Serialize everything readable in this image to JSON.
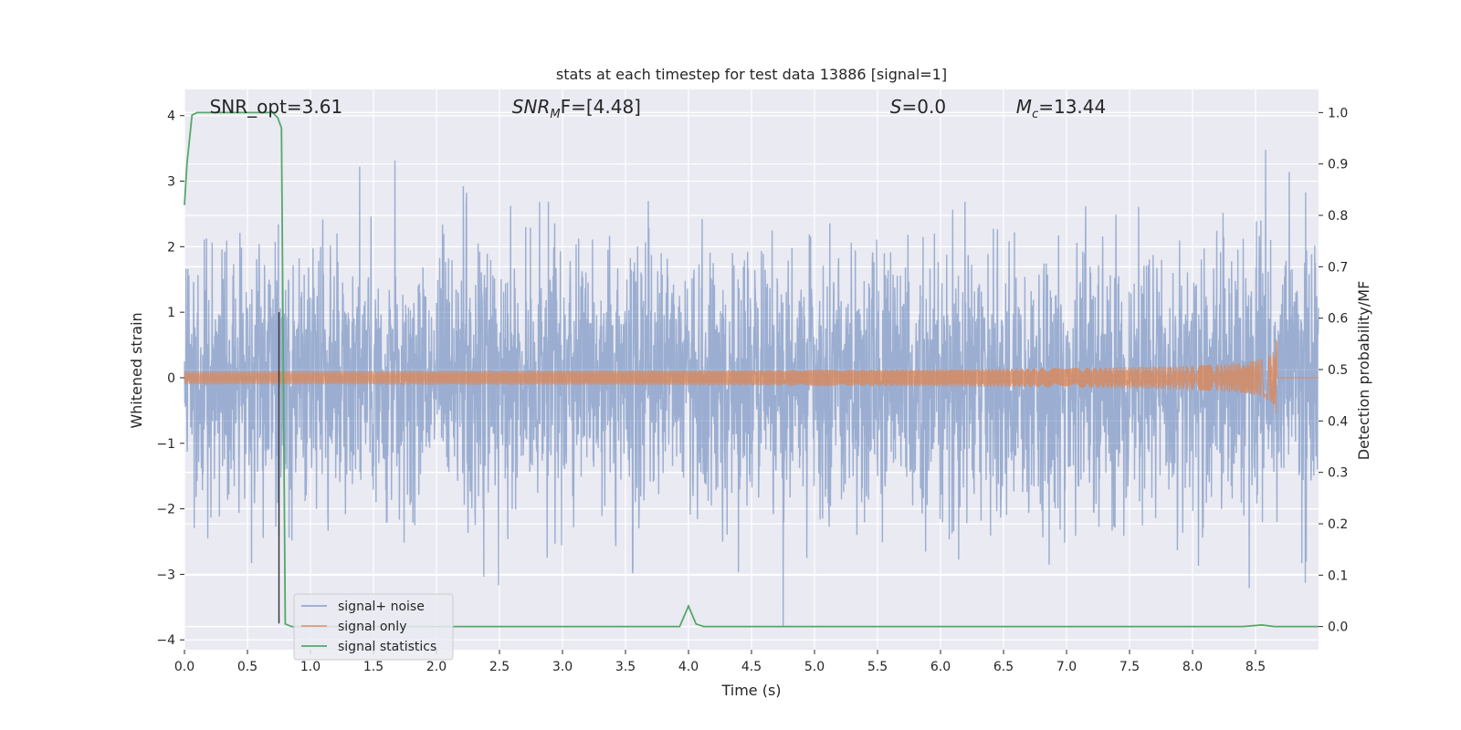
{
  "chart_data": {
    "type": "line",
    "title": "stats at each timestep for test data 13886 [signal=1]",
    "xlabel": "Time (s)",
    "ylabel": "Whitened strain",
    "y2label": "Detection probability/MF",
    "xlim": [
      0,
      9
    ],
    "ylim": [
      -4.15,
      4.4
    ],
    "y2lim": [
      -0.045,
      1.045
    ],
    "x_ticks": [
      0.0,
      0.5,
      1.0,
      1.5,
      2.0,
      2.5,
      3.0,
      3.5,
      4.0,
      4.5,
      5.0,
      5.5,
      6.0,
      6.5,
      7.0,
      7.5,
      8.0,
      8.5
    ],
    "x_tick_labels": [
      "0.0",
      "0.5",
      "1.0",
      "1.5",
      "2.0",
      "2.5",
      "3.0",
      "3.5",
      "4.0",
      "4.5",
      "5.0",
      "5.5",
      "6.0",
      "6.5",
      "7.0",
      "7.5",
      "8.0",
      "8.5"
    ],
    "y_ticks": [
      -4,
      -3,
      -2,
      -1,
      0,
      1,
      2,
      3,
      4
    ],
    "y_tick_labels": [
      "−4",
      "−3",
      "−2",
      "−1",
      "0",
      "1",
      "2",
      "3",
      "4"
    ],
    "y2_ticks": [
      0.0,
      0.1,
      0.2,
      0.3,
      0.4,
      0.5,
      0.6,
      0.7,
      0.8,
      0.9,
      1.0
    ],
    "y2_tick_labels": [
      "0.0",
      "0.1",
      "0.2",
      "0.3",
      "0.4",
      "0.5",
      "0.6",
      "0.7",
      "0.8",
      "0.9",
      "1.0"
    ],
    "grid": true,
    "legend_position": "lower-left",
    "annotations": [
      {
        "text": "SNR_opt=3.61",
        "x": 0.2
      },
      {
        "text": "SNR",
        "sub": "M",
        "tail": "F=[4.48]",
        "x": 2.6
      },
      {
        "text": "S",
        "tail": "=0.0",
        "x": 5.6
      },
      {
        "text": "M",
        "sub": "c",
        "tail": "=13.44",
        "x": 6.6
      }
    ],
    "vertical_line": {
      "x": 0.75,
      "y_top": 1.0,
      "y_bottom": -3.75,
      "color": "#333333"
    },
    "series": [
      {
        "name": "signal+ noise",
        "axis": "left",
        "color": "#4c72b0",
        "opacity": 0.5,
        "description_level": "gaussian-like noise, std about 1, peaks reaching about ±4",
        "x_range": [
          0,
          9
        ],
        "std": 1.0
      },
      {
        "name": "signal only",
        "axis": "left",
        "color": "#dd8452",
        "description_level": "chirp growing in amplitude, peak amplitude about 0.8 near 8.67 s",
        "x_range": [
          0,
          8.67
        ],
        "peak_amplitude": 0.8,
        "peak_time": 8.67
      },
      {
        "name": "signal statistics",
        "axis": "right",
        "color": "#55a868",
        "x": [
          0.0,
          0.02,
          0.06,
          0.1,
          0.2,
          0.3,
          0.4,
          0.5,
          0.6,
          0.7,
          0.74,
          0.77,
          0.8,
          0.85,
          1.0,
          1.5,
          2.0,
          2.5,
          3.0,
          3.5,
          3.93,
          4.0,
          4.06,
          4.12,
          4.5,
          5.0,
          5.5,
          6.0,
          6.5,
          7.0,
          7.5,
          8.0,
          8.4,
          8.55,
          8.65,
          9.0
        ],
        "values": [
          0.82,
          0.9,
          0.995,
          1.0,
          1.0,
          1.0,
          1.0,
          1.0,
          1.0,
          1.0,
          0.99,
          0.97,
          0.005,
          0.0,
          0.0,
          0.0,
          0.0,
          0.0,
          0.0,
          0.0,
          0.0,
          0.04,
          0.005,
          0.0,
          0.0,
          0.0,
          0.0,
          0.0,
          0.0,
          0.0,
          0.0,
          0.0,
          0.0,
          0.003,
          0.0,
          0.0
        ]
      }
    ]
  }
}
